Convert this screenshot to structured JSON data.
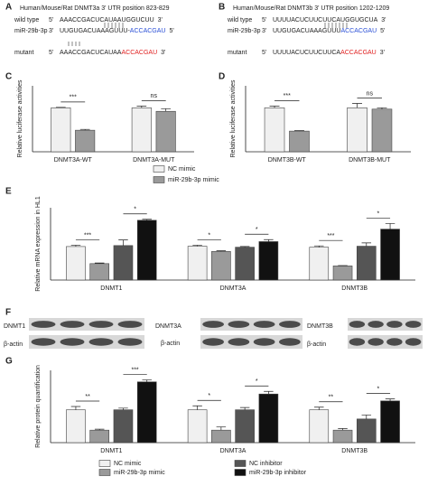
{
  "panels": {
    "A": {
      "letter": "A",
      "title": "Human/Mouse/Rat DNMT3a 3' UTR position 823-829",
      "rows": [
        {
          "name": "wild type",
          "left": "5'",
          "seq": "AAACCGACUCAUAAUGGUCUU",
          "right": "3'"
        },
        {
          "name": "miR-29b-3p",
          "left": "3'",
          "seq": "UUGUGACUAAAGUUU-",
          "colored": "ACCACGAU",
          "color": "#2a4fd6",
          "right": "5'"
        },
        {
          "name": "mutant",
          "left": "5'",
          "seq": "AAACCGACUCAUAA",
          "colored": "ACCACGAU",
          "color": "#e02020",
          "right": "3'"
        }
      ]
    },
    "B": {
      "letter": "B",
      "title": "Human/Mouse/Rat DNMT3b 3' UTR position 1202-1209",
      "rows": [
        {
          "name": "wild type",
          "left": "5'",
          "seq": "UUUUACUCUUCUUCAUGGUGCUA",
          "right": "3'"
        },
        {
          "name": "miR-29b-3p",
          "left": "3'",
          "seq": "UUGUGACUAAAGUUU",
          "colored": "ACCACGAU",
          "color": "#2a4fd6",
          "right": "5'"
        },
        {
          "name": "mutant",
          "left": "5'",
          "seq": "UUUUACUCUUCUUCA",
          "colored": "ACCACGAU",
          "color": "#e02020",
          "right": "3'"
        }
      ]
    },
    "F": {
      "letter": "F",
      "blots": [
        {
          "protein": "DNMT1",
          "control": "β-actin"
        },
        {
          "protein": "DNMT3A",
          "control": "β-actin"
        },
        {
          "protein": "DNMT3B",
          "control": "β-actin"
        }
      ]
    }
  },
  "chart_data": [
    {
      "type": "bar",
      "letter": "C",
      "ylabel": "Relative luciferase activities",
      "ylim": [
        0,
        1.5
      ],
      "categories": [
        "DNMT3A-WT",
        "DNMT3A-MUT"
      ],
      "series": [
        {
          "name": "NC mimic",
          "color": "#f0f0f0",
          "values": [
            1.0,
            1.0
          ],
          "errors": [
            0.01,
            0.04
          ]
        },
        {
          "name": "miR-29b-3p mimic",
          "color": "#9a9a9a",
          "values": [
            0.49,
            0.92
          ],
          "errors": [
            0.02,
            0.06
          ]
        }
      ],
      "significance": [
        [
          "***"
        ],
        [
          "ns"
        ]
      ]
    },
    {
      "type": "bar",
      "letter": "D",
      "ylabel": "Relative luciferase activities",
      "ylim": [
        0,
        1.5
      ],
      "categories": [
        "DNMT3B-WT",
        "DNMT3B-MUT"
      ],
      "series": [
        {
          "name": "NC mimic",
          "color": "#f0f0f0",
          "values": [
            1.0,
            1.0
          ],
          "errors": [
            0.04,
            0.1
          ]
        },
        {
          "name": "miR-29b-3p mimic",
          "color": "#9a9a9a",
          "values": [
            0.47,
            0.97
          ],
          "errors": [
            0.01,
            0.03
          ]
        }
      ],
      "significance": [
        [
          "***"
        ],
        [
          "ns"
        ]
      ]
    },
    {
      "type": "bar",
      "letter": "E",
      "ylabel": "Relative mRNA expression in HL1",
      "ylim": [
        0,
        2.2
      ],
      "categories": [
        "DNMT1",
        "DNMT3A",
        "DNMT3B"
      ],
      "series": [
        {
          "name": "NC mimic",
          "color": "#f0f0f0",
          "values": [
            1.02,
            1.03,
            1.0
          ],
          "errors": [
            0.04,
            0.03,
            0.04
          ]
        },
        {
          "name": "miR-29b-3p mimic",
          "color": "#9a9a9a",
          "values": [
            0.5,
            0.87,
            0.43
          ],
          "errors": [
            0.02,
            0.02,
            0.01
          ]
        },
        {
          "name": "NC inhibitor",
          "color": "#555555",
          "values": [
            1.05,
            1.0,
            1.03
          ],
          "errors": [
            0.17,
            0.02,
            0.1
          ]
        },
        {
          "name": "miR-29b-3p inhibitor",
          "color": "#111111",
          "values": [
            1.82,
            1.17,
            1.55
          ],
          "errors": [
            0.03,
            0.06,
            0.17
          ]
        }
      ],
      "significance": [
        [
          "***",
          "*"
        ],
        [
          "*",
          "*"
        ],
        [
          "***",
          "*"
        ]
      ]
    },
    {
      "type": "bar",
      "letter": "G",
      "ylabel": "Relative protein quantification",
      "ylim": [
        0,
        2.2
      ],
      "categories": [
        "DNMT1",
        "DNMT3A",
        "DNMT3B"
      ],
      "series": [
        {
          "name": "NC mimic",
          "color": "#f0f0f0",
          "values": [
            1.0,
            1.0,
            1.0
          ],
          "errors": [
            0.1,
            0.12,
            0.08
          ]
        },
        {
          "name": "miR-29b-3p mimic",
          "color": "#9a9a9a",
          "values": [
            0.38,
            0.38,
            0.38
          ],
          "errors": [
            0.03,
            0.1,
            0.05
          ]
        },
        {
          "name": "NC inhibitor",
          "color": "#555555",
          "values": [
            1.0,
            1.0,
            0.72
          ],
          "errors": [
            0.05,
            0.07,
            0.12
          ]
        },
        {
          "name": "miR-29b-3p inhibitor",
          "color": "#111111",
          "values": [
            1.85,
            1.48,
            1.27
          ],
          "errors": [
            0.06,
            0.08,
            0.06
          ]
        }
      ],
      "significance": [
        [
          "**",
          "***"
        ],
        [
          "*",
          "*"
        ],
        [
          "**",
          "*"
        ]
      ]
    }
  ]
}
